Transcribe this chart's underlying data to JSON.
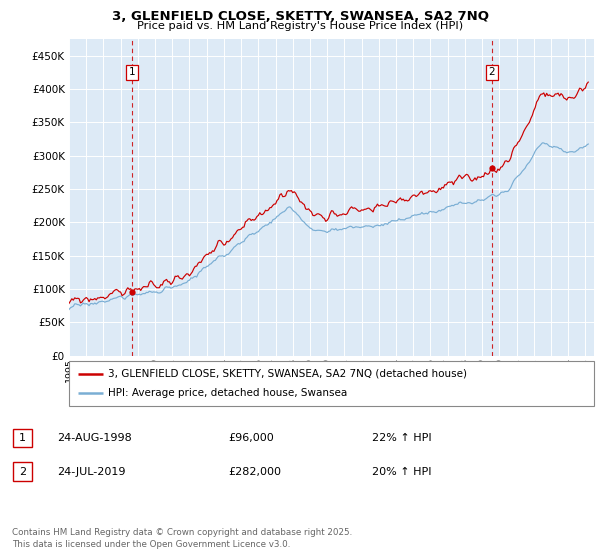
{
  "title1": "3, GLENFIELD CLOSE, SKETTY, SWANSEA, SA2 7NQ",
  "title2": "Price paid vs. HM Land Registry's House Price Index (HPI)",
  "legend1": "3, GLENFIELD CLOSE, SKETTY, SWANSEA, SA2 7NQ (detached house)",
  "legend2": "HPI: Average price, detached house, Swansea",
  "sale1_date": "24-AUG-1998",
  "sale1_price": "£96,000",
  "sale1_hpi": "22% ↑ HPI",
  "sale1_year": 1998.65,
  "sale1_value": 96000,
  "sale2_date": "24-JUL-2019",
  "sale2_price": "£282,000",
  "sale2_hpi": "20% ↑ HPI",
  "sale2_year": 2019.56,
  "sale2_value": 282000,
  "red_color": "#cc0000",
  "blue_color": "#7aaed4",
  "bg_color": "#ddeaf6",
  "grid_color": "#ffffff",
  "footer": "Contains HM Land Registry data © Crown copyright and database right 2025.\nThis data is licensed under the Open Government Licence v3.0.",
  "ylim": [
    0,
    475000
  ],
  "yticks": [
    0,
    50000,
    100000,
    150000,
    200000,
    250000,
    300000,
    350000,
    400000,
    450000
  ]
}
